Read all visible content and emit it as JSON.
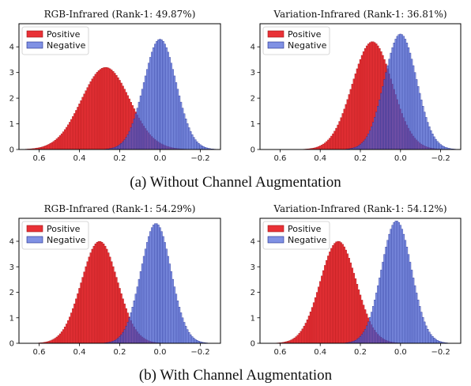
{
  "captions": [
    "(a) Without Channel Augmentation",
    "(b) With Channel Augmentation"
  ],
  "colors": {
    "positive": "#e8262b",
    "positive_edge": "#9e1416",
    "negative": "#4a63d8",
    "negative_edge": "#1e2a8a",
    "overlap": "#5a2b7a"
  },
  "chart_data": [
    {
      "type": "histogram",
      "title": "RGB-Infrared (Rank-1: 49.87%)",
      "x_inverted": true,
      "xlim": [
        0.7,
        -0.3
      ],
      "ylim": [
        0,
        4.9
      ],
      "xticks": [
        0.6,
        0.4,
        0.2,
        0.0,
        -0.2
      ],
      "xtick_labels": [
        "0.6",
        "0.4",
        "0.2",
        "0.0",
        "−0.2"
      ],
      "yticks": [
        0,
        1,
        2,
        3,
        4
      ],
      "legend": {
        "placement": "top-left",
        "entries": [
          "Positive",
          "Negative"
        ]
      },
      "series": [
        {
          "name": "Positive",
          "shape": "gaussian",
          "mean": 0.27,
          "sd": 0.12,
          "peak": 3.2
        },
        {
          "name": "Negative",
          "shape": "gaussian",
          "mean": 0.0,
          "sd": 0.08,
          "peak": 4.3
        }
      ]
    },
    {
      "type": "histogram",
      "title": "Variation-Infrared (Rank-1: 36.81%)",
      "x_inverted": true,
      "xlim": [
        0.7,
        -0.3
      ],
      "ylim": [
        0,
        4.9
      ],
      "xticks": [
        0.6,
        0.4,
        0.2,
        0.0,
        -0.2
      ],
      "xtick_labels": [
        "0.6",
        "0.4",
        "0.2",
        "0.0",
        "−0.2"
      ],
      "yticks": [
        0,
        1,
        2,
        3,
        4
      ],
      "legend": {
        "placement": "top-left",
        "entries": [
          "Positive",
          "Negative"
        ]
      },
      "series": [
        {
          "name": "Positive",
          "shape": "gaussian",
          "mean": 0.14,
          "sd": 0.1,
          "peak": 4.2
        },
        {
          "name": "Negative",
          "shape": "gaussian",
          "mean": 0.0,
          "sd": 0.08,
          "peak": 4.5
        }
      ]
    },
    {
      "type": "histogram",
      "title": "RGB-Infrared (Rank-1: 54.29%)",
      "x_inverted": true,
      "xlim": [
        0.7,
        -0.3
      ],
      "ylim": [
        0,
        4.9
      ],
      "xticks": [
        0.6,
        0.4,
        0.2,
        0.0,
        -0.2
      ],
      "xtick_labels": [
        "0.6",
        "0.4",
        "0.2",
        "0.0",
        "−0.2"
      ],
      "yticks": [
        0,
        1,
        2,
        3,
        4
      ],
      "legend": {
        "placement": "top-left",
        "entries": [
          "Positive",
          "Negative"
        ]
      },
      "series": [
        {
          "name": "Positive",
          "shape": "gaussian",
          "mean": 0.3,
          "sd": 0.09,
          "peak": 4.0
        },
        {
          "name": "Negative",
          "shape": "gaussian",
          "mean": 0.02,
          "sd": 0.075,
          "peak": 4.7
        }
      ]
    },
    {
      "type": "histogram",
      "title": "Variation-Infrared (Rank-1: 54.12%)",
      "x_inverted": true,
      "xlim": [
        0.7,
        -0.3
      ],
      "ylim": [
        0,
        4.9
      ],
      "xticks": [
        0.6,
        0.4,
        0.2,
        0.0,
        -0.2
      ],
      "xtick_labels": [
        "0.6",
        "0.4",
        "0.2",
        "0.0",
        "−0.2"
      ],
      "yticks": [
        0,
        1,
        2,
        3,
        4
      ],
      "legend": {
        "placement": "top-left",
        "entries": [
          "Positive",
          "Negative"
        ]
      },
      "series": [
        {
          "name": "Positive",
          "shape": "gaussian",
          "mean": 0.31,
          "sd": 0.09,
          "peak": 4.0
        },
        {
          "name": "Negative",
          "shape": "gaussian",
          "mean": 0.02,
          "sd": 0.075,
          "peak": 4.8
        }
      ]
    }
  ]
}
